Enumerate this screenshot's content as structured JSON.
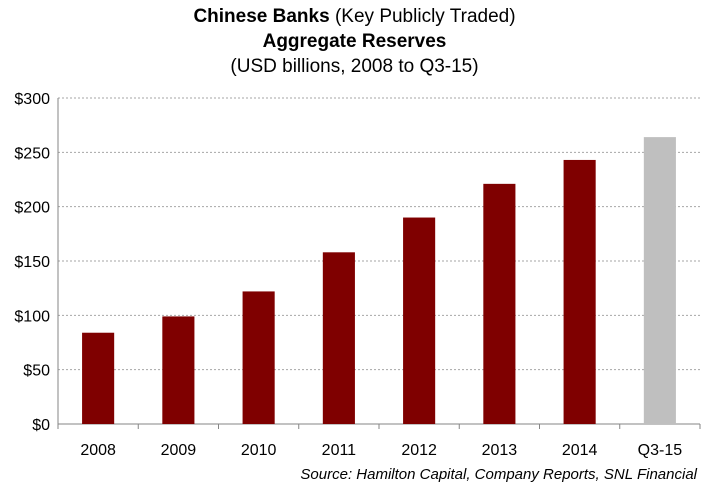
{
  "chart_data": {
    "type": "bar",
    "title_bold": "Chinese Banks",
    "title_rest": "(Key Publicly Traded)",
    "subtitle": "Aggregate Reserves",
    "subtitle2": "(USD billions, 2008 to Q3-15)",
    "categories": [
      "2008",
      "2009",
      "2010",
      "2011",
      "2012",
      "2013",
      "2014",
      "Q3-15"
    ],
    "values": [
      84,
      99,
      122,
      158,
      190,
      221,
      243,
      264
    ],
    "bar_colors": [
      "#7f0000",
      "#7f0000",
      "#7f0000",
      "#7f0000",
      "#7f0000",
      "#7f0000",
      "#7f0000",
      "#bfbfbf"
    ],
    "ylim": [
      0,
      300
    ],
    "y_ticks": [
      0,
      50,
      100,
      150,
      200,
      250,
      300
    ],
    "y_tick_labels": [
      "$0",
      "$50",
      "$100",
      "$150",
      "$200",
      "$250",
      "$300"
    ],
    "grid": true,
    "source": "Source: Hamilton Capital, Company Reports, SNL Financial"
  }
}
